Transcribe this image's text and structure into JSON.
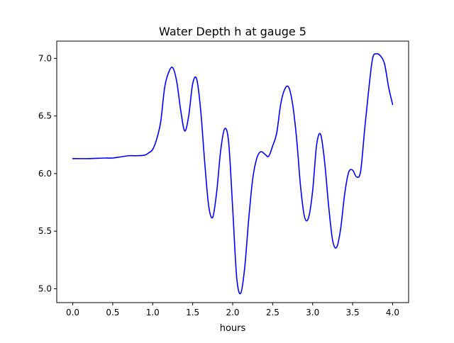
{
  "chart_data": {
    "type": "line",
    "title": "Water Depth h at gauge 5",
    "xlabel": "hours",
    "ylabel": "",
    "xlim": [
      -0.2,
      4.2
    ],
    "ylim": [
      4.88,
      7.15
    ],
    "x_ticks": [
      0.0,
      0.5,
      1.0,
      1.5,
      2.0,
      2.5,
      3.0,
      3.5,
      4.0
    ],
    "x_tick_labels": [
      "0.0",
      "0.5",
      "1.0",
      "1.5",
      "2.0",
      "2.5",
      "3.0",
      "3.5",
      "4.0"
    ],
    "y_ticks": [
      5.0,
      5.5,
      6.0,
      6.5,
      7.0
    ],
    "y_tick_labels": [
      "5.0",
      "5.5",
      "6.0",
      "6.5",
      "7.0"
    ],
    "grid": false,
    "legend": "none",
    "series": [
      {
        "color": "#0000ff",
        "x": [
          0.0,
          0.2,
          0.4,
          0.5,
          0.6,
          0.7,
          0.8,
          0.9,
          0.95,
          1.0,
          1.05,
          1.1,
          1.15,
          1.2,
          1.25,
          1.3,
          1.35,
          1.4,
          1.45,
          1.5,
          1.55,
          1.6,
          1.65,
          1.7,
          1.75,
          1.8,
          1.85,
          1.9,
          1.95,
          2.0,
          2.05,
          2.1,
          2.15,
          2.2,
          2.25,
          2.3,
          2.35,
          2.4,
          2.45,
          2.5,
          2.55,
          2.6,
          2.65,
          2.7,
          2.75,
          2.8,
          2.85,
          2.9,
          2.95,
          3.0,
          3.05,
          3.1,
          3.15,
          3.2,
          3.25,
          3.3,
          3.35,
          3.4,
          3.45,
          3.5,
          3.55,
          3.6,
          3.65,
          3.7,
          3.75,
          3.8,
          3.85,
          3.9,
          3.95,
          4.0
        ],
        "y": [
          6.13,
          6.13,
          6.135,
          6.135,
          6.145,
          6.155,
          6.155,
          6.16,
          6.18,
          6.21,
          6.3,
          6.45,
          6.75,
          6.88,
          6.92,
          6.8,
          6.55,
          6.37,
          6.5,
          6.78,
          6.82,
          6.55,
          6.1,
          5.72,
          5.62,
          5.84,
          6.2,
          6.39,
          6.27,
          5.7,
          5.1,
          4.96,
          5.18,
          5.6,
          5.95,
          6.13,
          6.19,
          6.17,
          6.15,
          6.24,
          6.35,
          6.6,
          6.73,
          6.75,
          6.6,
          6.3,
          5.88,
          5.62,
          5.62,
          5.85,
          6.25,
          6.34,
          6.1,
          5.72,
          5.42,
          5.36,
          5.52,
          5.82,
          6.01,
          6.03,
          5.97,
          6.02,
          6.38,
          6.72,
          7.0,
          7.04,
          7.02,
          6.95,
          6.75,
          6.6
        ]
      }
    ]
  }
}
